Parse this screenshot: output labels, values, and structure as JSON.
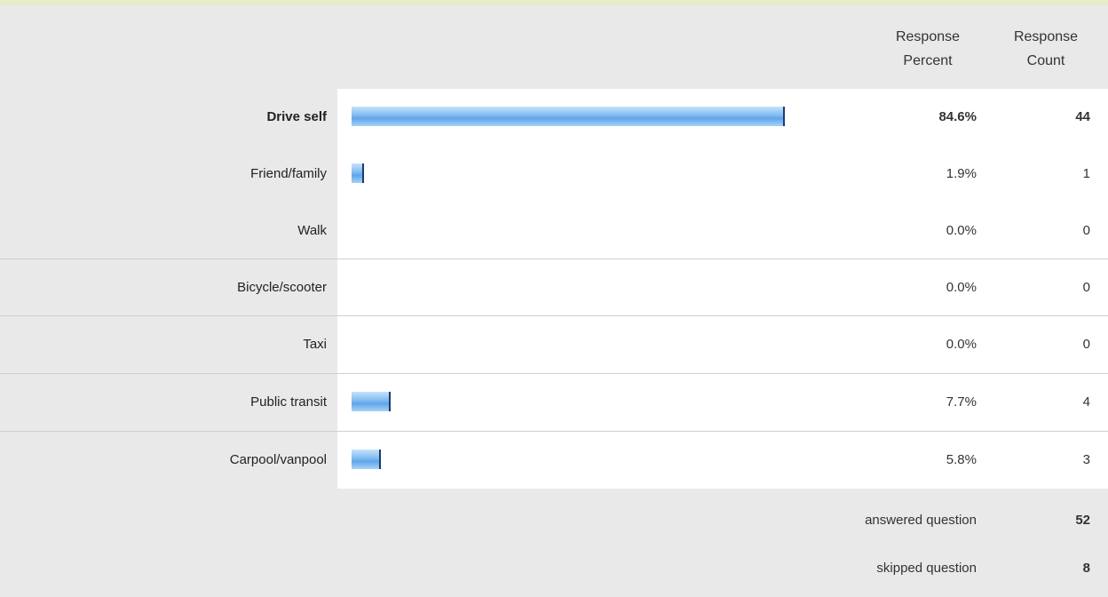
{
  "table": {
    "header": {
      "percent_line1": "Response",
      "percent_line2": "Percent",
      "count_line1": "Response",
      "count_line2": "Count"
    },
    "rows": [
      {
        "label": "Drive self",
        "percent": "84.6%",
        "count": "44"
      },
      {
        "label": "Friend/family",
        "percent": "1.9%",
        "count": "1"
      },
      {
        "label": "Walk",
        "percent": "0.0%",
        "count": "0"
      },
      {
        "label": "Bicycle/scooter",
        "percent": "0.0%",
        "count": "0"
      },
      {
        "label": "Taxi",
        "percent": "0.0%",
        "count": "0"
      },
      {
        "label": "Public transit",
        "percent": "7.7%",
        "count": "4"
      },
      {
        "label": "Carpool/vanpool",
        "percent": "5.8%",
        "count": "3"
      }
    ],
    "footer": {
      "answered_label": "answered question",
      "answered_value": "52",
      "skipped_label": "skipped question",
      "skipped_value": "8"
    }
  },
  "chart_data": {
    "type": "bar",
    "orientation": "horizontal",
    "categories": [
      "Drive self",
      "Friend/family",
      "Walk",
      "Bicycle/scooter",
      "Taxi",
      "Public transit",
      "Carpool/vanpool"
    ],
    "values": [
      84.6,
      1.9,
      0.0,
      0.0,
      0.0,
      7.7,
      5.8
    ],
    "counts": [
      44,
      1,
      0,
      0,
      0,
      4,
      3
    ],
    "xlim": [
      0,
      100
    ],
    "bar_color": "#7fbaf0",
    "bar_edge_color": "#1d3b6e"
  }
}
